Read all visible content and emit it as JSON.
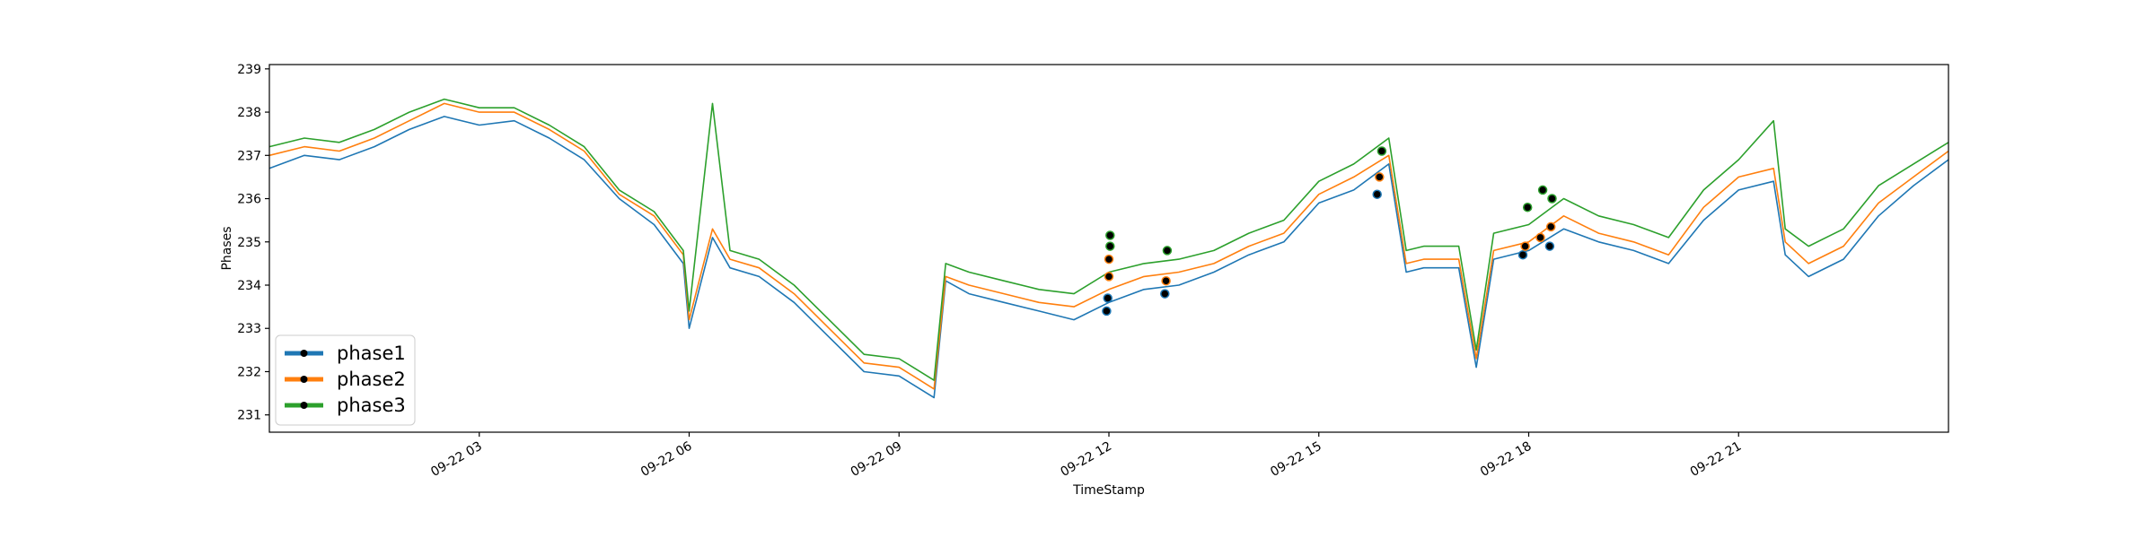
{
  "chart_data": {
    "type": "line",
    "xlabel": "TimeStamp",
    "ylabel": "Phases",
    "xlim": [
      "2023-09-22 00:00",
      "2023-09-23 00:00"
    ],
    "ylim": [
      230.6,
      239.1
    ],
    "xticks": [
      {
        "label": "09-22 03",
        "value": "2023-09-22 03:00"
      },
      {
        "label": "09-22 06",
        "value": "2023-09-22 06:00"
      },
      {
        "label": "09-22 09",
        "value": "2023-09-22 09:00"
      },
      {
        "label": "09-22 12",
        "value": "2023-09-22 12:00"
      },
      {
        "label": "09-22 15",
        "value": "2023-09-22 15:00"
      },
      {
        "label": "09-22 18",
        "value": "2023-09-22 18:00"
      },
      {
        "label": "09-22 21",
        "value": "2023-09-22 21:00"
      }
    ],
    "yticks": [
      231,
      232,
      233,
      234,
      235,
      236,
      237,
      238,
      239
    ],
    "grid": false,
    "legend_position": "lower-left",
    "x": [
      "2023-09-22 00:00",
      "2023-09-22 00:30",
      "2023-09-22 01:00",
      "2023-09-22 01:30",
      "2023-09-22 02:00",
      "2023-09-22 02:30",
      "2023-09-22 03:00",
      "2023-09-22 03:30",
      "2023-09-22 04:00",
      "2023-09-22 04:30",
      "2023-09-22 05:00",
      "2023-09-22 05:30",
      "2023-09-22 05:55",
      "2023-09-22 06:00",
      "2023-09-22 06:20",
      "2023-09-22 06:35",
      "2023-09-22 07:00",
      "2023-09-22 07:30",
      "2023-09-22 08:00",
      "2023-09-22 08:30",
      "2023-09-22 09:00",
      "2023-09-22 09:30",
      "2023-09-22 09:40",
      "2023-09-22 10:00",
      "2023-09-22 10:30",
      "2023-09-22 11:00",
      "2023-09-22 11:30",
      "2023-09-22 12:00",
      "2023-09-22 12:30",
      "2023-09-22 13:00",
      "2023-09-22 13:30",
      "2023-09-22 14:00",
      "2023-09-22 14:30",
      "2023-09-22 15:00",
      "2023-09-22 15:30",
      "2023-09-22 16:00",
      "2023-09-22 16:15",
      "2023-09-22 16:30",
      "2023-09-22 17:00",
      "2023-09-22 17:15",
      "2023-09-22 17:30",
      "2023-09-22 18:00",
      "2023-09-22 18:30",
      "2023-09-22 19:00",
      "2023-09-22 19:30",
      "2023-09-22 20:00",
      "2023-09-22 20:30",
      "2023-09-22 21:00",
      "2023-09-22 21:30",
      "2023-09-22 21:40",
      "2023-09-22 22:00",
      "2023-09-22 22:30",
      "2023-09-22 23:00",
      "2023-09-22 23:30",
      "2023-09-23 00:00"
    ],
    "series": [
      {
        "name": "phase1",
        "color": "#1f77b4",
        "values": [
          236.7,
          237.0,
          236.9,
          237.2,
          237.6,
          237.9,
          237.7,
          237.8,
          237.4,
          236.9,
          236.0,
          235.4,
          234.5,
          233.0,
          235.1,
          234.4,
          234.2,
          233.6,
          232.8,
          232.0,
          231.9,
          231.4,
          234.1,
          233.8,
          233.6,
          233.4,
          233.2,
          233.6,
          233.9,
          234.0,
          234.3,
          234.7,
          235.0,
          235.9,
          236.2,
          236.8,
          234.3,
          234.4,
          234.4,
          232.1,
          234.6,
          234.8,
          235.3,
          235.0,
          234.8,
          234.5,
          235.5,
          236.2,
          236.4,
          234.7,
          234.2,
          234.6,
          235.6,
          236.3,
          236.9
        ]
      },
      {
        "name": "phase2",
        "color": "#ff7f0e",
        "values": [
          237.0,
          237.2,
          237.1,
          237.4,
          237.8,
          238.2,
          238.0,
          238.0,
          237.6,
          237.1,
          236.1,
          235.6,
          234.7,
          233.2,
          235.3,
          234.6,
          234.4,
          233.8,
          233.0,
          232.2,
          232.1,
          231.6,
          234.2,
          234.0,
          233.8,
          233.6,
          233.5,
          233.9,
          234.2,
          234.3,
          234.5,
          234.9,
          235.2,
          236.1,
          236.5,
          237.0,
          234.5,
          234.6,
          234.6,
          232.3,
          234.8,
          235.0,
          235.6,
          235.2,
          235.0,
          234.7,
          235.8,
          236.5,
          236.7,
          235.0,
          234.5,
          234.9,
          235.9,
          236.5,
          237.1
        ]
      },
      {
        "name": "phase3",
        "color": "#2ca02c",
        "values": [
          237.2,
          237.4,
          237.3,
          237.6,
          238.0,
          238.3,
          238.1,
          238.1,
          237.7,
          237.2,
          236.2,
          235.7,
          234.8,
          233.4,
          238.2,
          234.8,
          234.6,
          234.0,
          233.2,
          232.4,
          232.3,
          231.8,
          234.5,
          234.3,
          234.1,
          233.9,
          233.8,
          234.3,
          234.5,
          234.6,
          234.8,
          235.2,
          235.5,
          236.4,
          236.8,
          237.4,
          234.8,
          234.9,
          234.9,
          232.5,
          235.2,
          235.4,
          236.0,
          235.6,
          235.4,
          235.1,
          236.2,
          236.9,
          237.8,
          235.3,
          234.9,
          235.3,
          236.3,
          236.8,
          237.3
        ]
      }
    ],
    "markers": [
      {
        "x": "2023-09-22 11:58",
        "y": 233.4,
        "series": "phase1"
      },
      {
        "x": "2023-09-22 11:59",
        "y": 233.7,
        "series": "phase1"
      },
      {
        "x": "2023-09-22 12:00",
        "y": 234.2,
        "series": "phase2"
      },
      {
        "x": "2023-09-22 12:00",
        "y": 234.6,
        "series": "phase2"
      },
      {
        "x": "2023-09-22 12:01",
        "y": 234.9,
        "series": "phase3"
      },
      {
        "x": "2023-09-22 12:01",
        "y": 235.15,
        "series": "phase3"
      },
      {
        "x": "2023-09-22 12:48",
        "y": 233.8,
        "series": "phase1"
      },
      {
        "x": "2023-09-22 12:49",
        "y": 234.1,
        "series": "phase2"
      },
      {
        "x": "2023-09-22 12:50",
        "y": 234.8,
        "series": "phase3"
      },
      {
        "x": "2023-09-22 15:50",
        "y": 236.1,
        "series": "phase1"
      },
      {
        "x": "2023-09-22 15:52",
        "y": 236.5,
        "series": "phase2"
      },
      {
        "x": "2023-09-22 15:54",
        "y": 237.1,
        "series": "phase3"
      },
      {
        "x": "2023-09-22 17:55",
        "y": 234.7,
        "series": "phase1"
      },
      {
        "x": "2023-09-22 17:57",
        "y": 234.9,
        "series": "phase2"
      },
      {
        "x": "2023-09-22 17:59",
        "y": 235.8,
        "series": "phase3"
      },
      {
        "x": "2023-09-22 18:10",
        "y": 235.1,
        "series": "phase2"
      },
      {
        "x": "2023-09-22 18:12",
        "y": 236.2,
        "series": "phase3"
      },
      {
        "x": "2023-09-22 18:18",
        "y": 234.9,
        "series": "phase1"
      },
      {
        "x": "2023-09-22 18:19",
        "y": 235.35,
        "series": "phase2"
      },
      {
        "x": "2023-09-22 18:20",
        "y": 236.0,
        "series": "phase3"
      }
    ]
  }
}
